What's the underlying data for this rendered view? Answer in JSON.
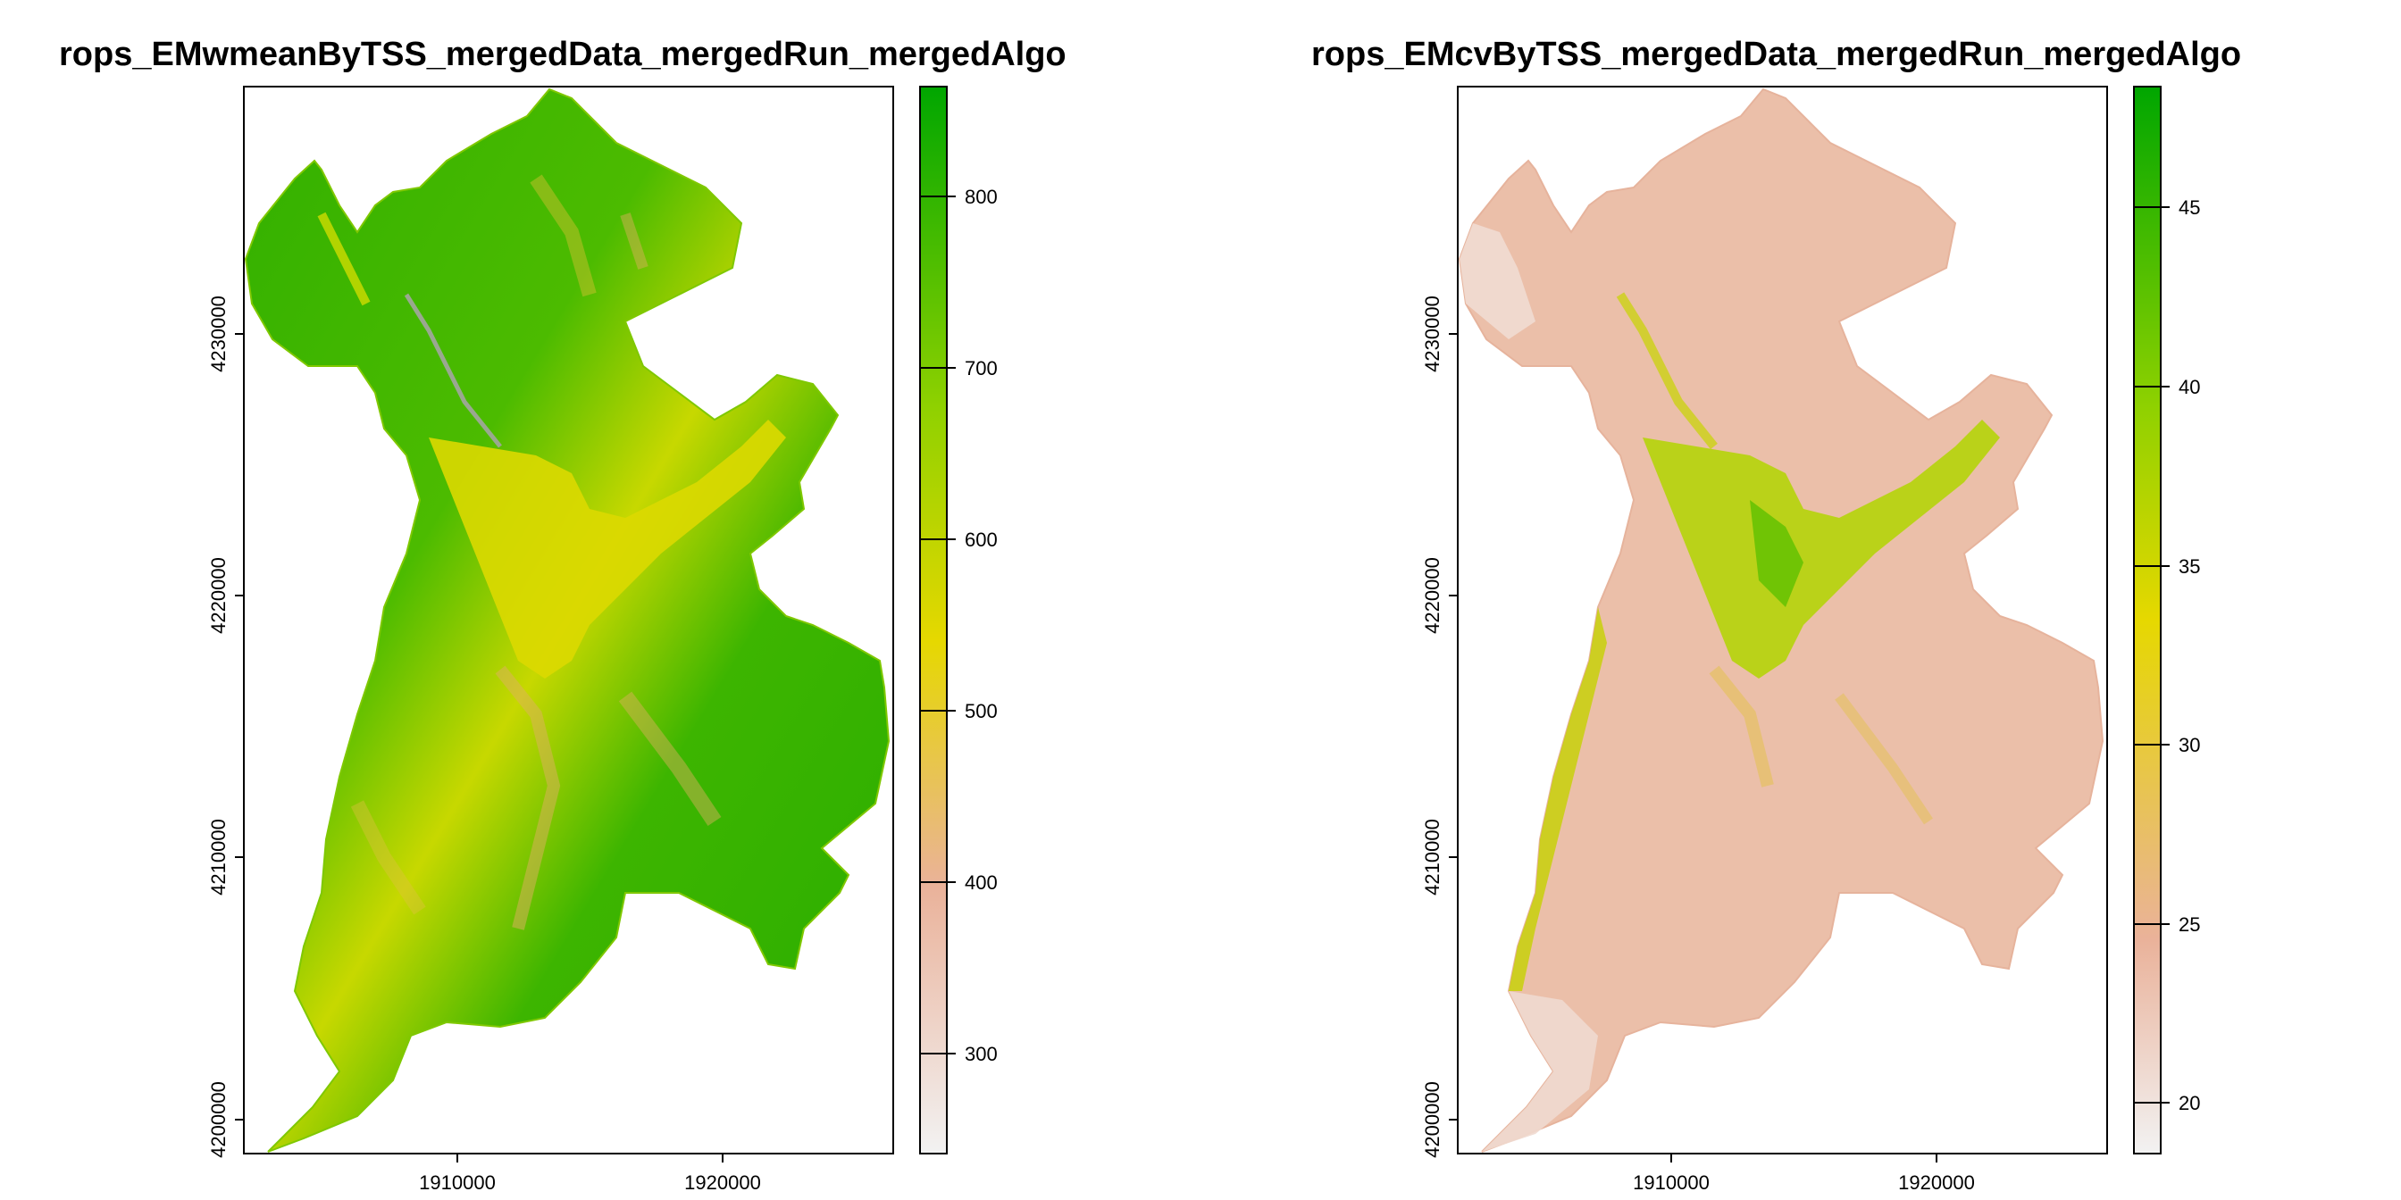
{
  "panels": [
    {
      "id": "left",
      "title": "rops_EMwmeanByTSS_mergedData_mergedRun_mergedAlgo",
      "x_ticks": [
        "1910000",
        "1920000"
      ],
      "y_ticks": [
        "4200000",
        "4210000",
        "4220000",
        "4230000"
      ],
      "legend": {
        "ticks": [
          "300",
          "400",
          "500",
          "600",
          "700",
          "800"
        ],
        "range": [
          235,
          865
        ],
        "colors": {
          "low": "#f2f2f2",
          "mid_low": "#eab29a",
          "mid": "#e6d800",
          "mid_high": "#8fd100",
          "high": "#00a600"
        }
      }
    },
    {
      "id": "right",
      "title": "rops_EMcvByTSS_mergedData_mergedRun_mergedAlgo",
      "x_ticks": [
        "1910000",
        "1920000"
      ],
      "y_ticks": [
        "4200000",
        "4210000",
        "4220000",
        "4230000"
      ],
      "legend": {
        "ticks": [
          "20",
          "25",
          "30",
          "35",
          "40",
          "45"
        ],
        "range": [
          18.3,
          48.2
        ],
        "colors": {
          "low": "#f2f2f2",
          "mid_low": "#eab29a",
          "mid": "#e6d800",
          "mid_high": "#8fd100",
          "high": "#00a600"
        }
      }
    }
  ]
}
